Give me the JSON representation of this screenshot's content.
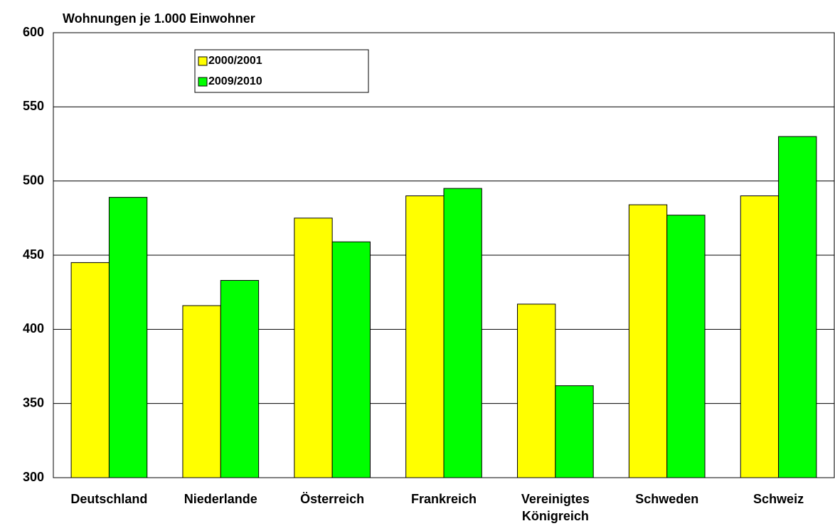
{
  "chart_data": {
    "type": "bar",
    "title": "Wohnungen je 1.000 Einwohner",
    "categories": [
      "Deutschland",
      "Niederlande",
      "Österreich",
      "Frankreich",
      "Vereinigtes\nKönigreich",
      "Schweden",
      "Schweiz"
    ],
    "series": [
      {
        "name": "2000/2001",
        "color": "#ffff00",
        "values": [
          445,
          416,
          475,
          490,
          417,
          484,
          490
        ]
      },
      {
        "name": "2009/2010",
        "color": "#00ff00",
        "values": [
          489,
          433,
          459,
          495,
          362,
          477,
          530
        ]
      }
    ],
    "ylim": [
      300,
      600
    ],
    "yticks": [
      300,
      350,
      400,
      450,
      500,
      550,
      600
    ],
    "grid": true
  }
}
